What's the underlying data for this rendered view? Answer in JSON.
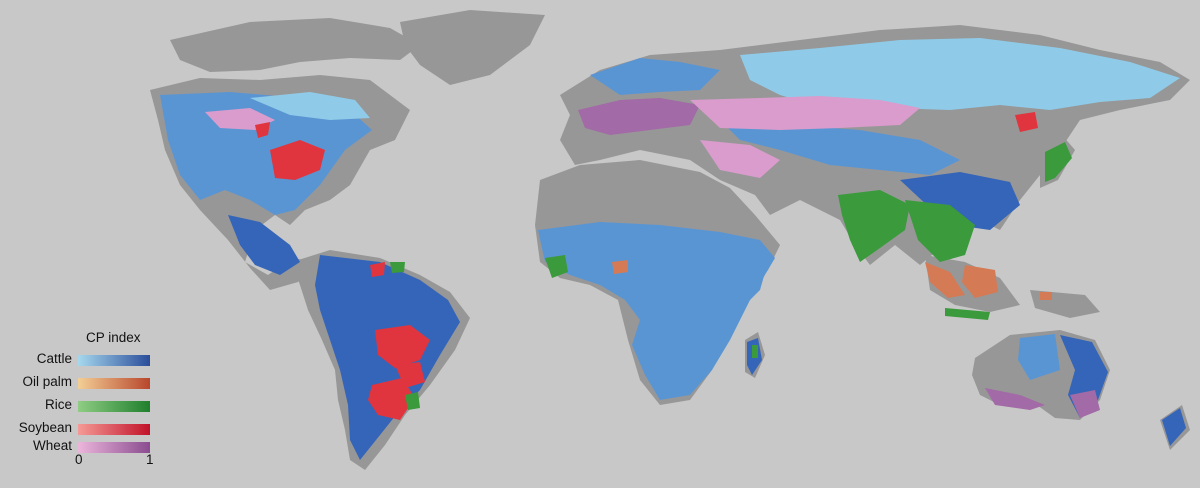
{
  "legend": {
    "title": "CP index",
    "tick_min": "0",
    "tick_max": "1",
    "items": [
      {
        "label": "Cattle",
        "color_low": "#a6d8ee",
        "color_high": "#2b4d9a"
      },
      {
        "label": "Oil palm",
        "color_low": "#f3cf96",
        "color_high": "#b8462c"
      },
      {
        "label": "Rice",
        "color_low": "#8fcd84",
        "color_high": "#1f7f2c"
      },
      {
        "label": "Soybean",
        "color_low": "#f59a96",
        "color_high": "#c1122a"
      },
      {
        "label": "Wheat",
        "color_low": "#ecb6dc",
        "color_high": "#8a4c8f"
      }
    ]
  },
  "colors": {
    "ocean": "#c8c8c8",
    "land_nodata": "#979797",
    "cattle_light": "#8fcbe8",
    "cattle_mid": "#5a95d3",
    "cattle_dark": "#3565b8",
    "wheat": "#d99ccc",
    "wheat_dark": "#a26aa6",
    "rice": "#3a9a3c",
    "soybean": "#e0353e",
    "oil_palm": "#d47a55"
  }
}
